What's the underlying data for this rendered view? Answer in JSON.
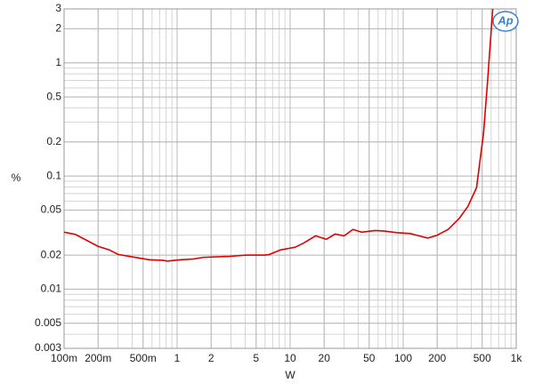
{
  "chart_data": {
    "type": "line",
    "x_label": "W",
    "y_label": "%",
    "logo": "Ap",
    "xlog": true,
    "ylog": true,
    "grid": true,
    "xlim": [
      0.1,
      1000
    ],
    "ylim": [
      0.003,
      3
    ],
    "xticks": [
      {
        "value": 0.1,
        "label": "100m"
      },
      {
        "value": 0.2,
        "label": "200m"
      },
      {
        "value": 0.5,
        "label": "500m"
      },
      1,
      2,
      5,
      10,
      20,
      50,
      100,
      200,
      500,
      {
        "value": 1000,
        "label": "1k"
      }
    ],
    "yticks": [
      0.003,
      0.005,
      0.01,
      0.02,
      0.05,
      0.1,
      0.2,
      0.5,
      1,
      2,
      3
    ],
    "x": [
      0.1,
      0.126,
      0.2,
      0.25,
      0.3,
      0.4,
      0.57,
      0.75,
      0.82,
      1.07,
      1.4,
      1.7,
      2.9,
      4.1,
      5.9,
      6.5,
      8.2,
      11.1,
      13.3,
      16.8,
      20.9,
      25,
      30,
      36,
      43,
      56,
      67,
      88,
      115,
      138,
      165,
      197,
      250,
      312,
      374,
      446,
      515,
      560,
      620
    ],
    "series": [
      {
        "color": "#e00000",
        "values": [
          0.0319,
          0.0305,
          0.0239,
          0.0223,
          0.0203,
          0.0193,
          0.0182,
          0.018,
          0.0177,
          0.0182,
          0.0185,
          0.0191,
          0.0195,
          0.02,
          0.02,
          0.0202,
          0.0222,
          0.0235,
          0.0257,
          0.0296,
          0.0276,
          0.0307,
          0.0296,
          0.0337,
          0.0319,
          0.033,
          0.0327,
          0.0316,
          0.031,
          0.0296,
          0.0283,
          0.0298,
          0.0337,
          0.042,
          0.054,
          0.079,
          0.243,
          0.72,
          3.0
        ]
      }
    ]
  }
}
